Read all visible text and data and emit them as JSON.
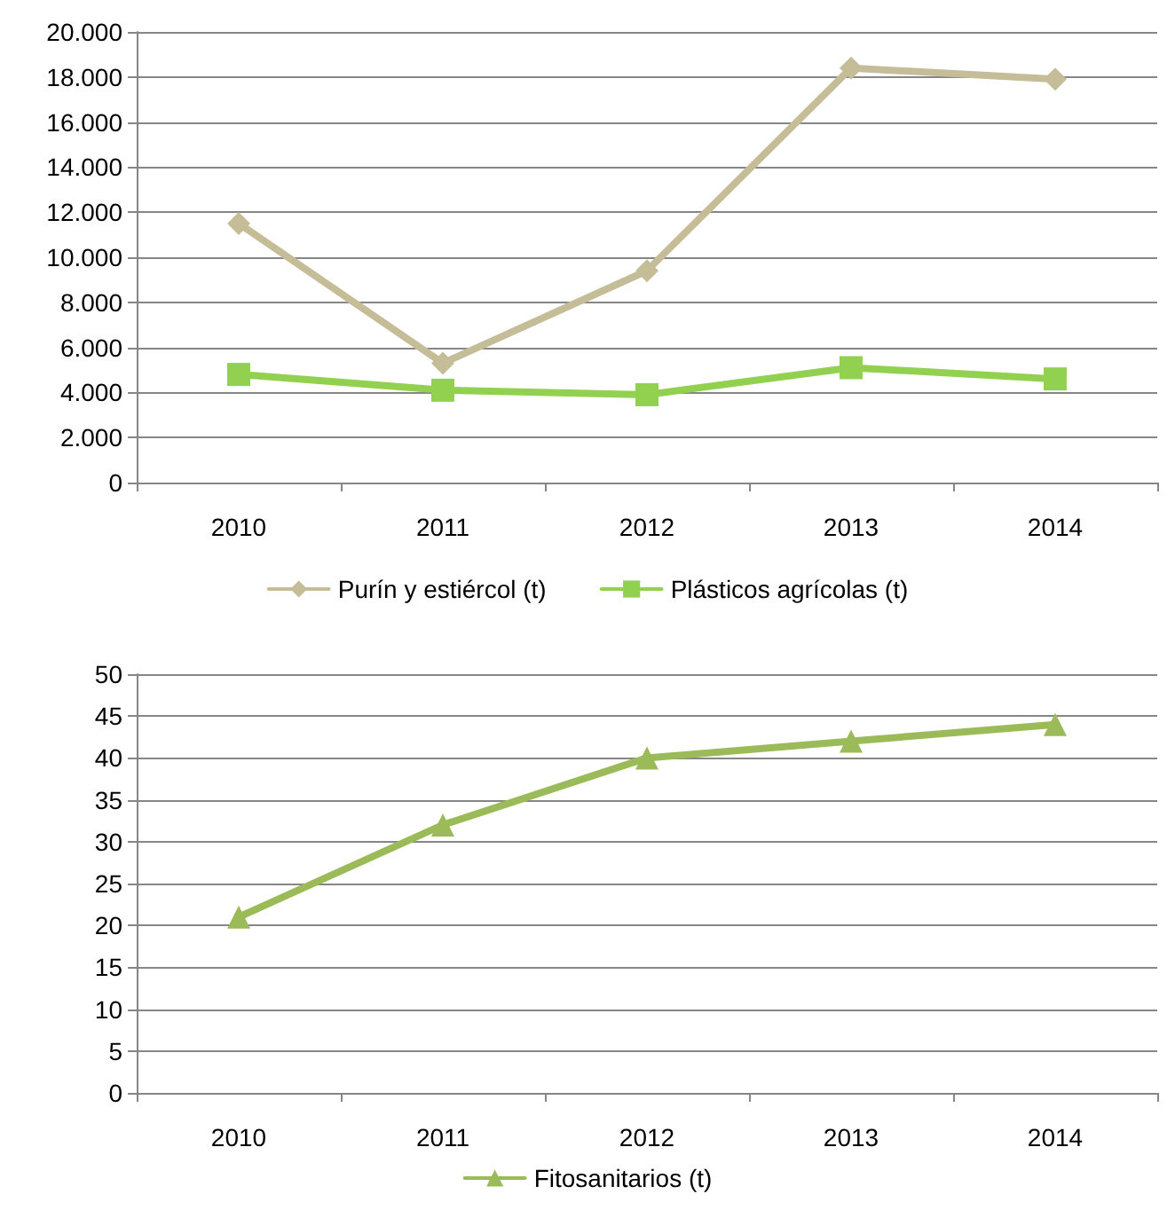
{
  "chart_data": [
    {
      "type": "line",
      "categories": [
        "2010",
        "2011",
        "2012",
        "2013",
        "2014"
      ],
      "series": [
        {
          "name": "Purín y estiércol (t)",
          "color": "#c4bd97",
          "marker": "diamond",
          "values": [
            11500,
            5300,
            9400,
            18400,
            17900
          ]
        },
        {
          "name": "Plásticos agrícolas (t)",
          "color": "#92d050",
          "marker": "square",
          "values": [
            4800,
            4100,
            3900,
            5100,
            4600
          ]
        }
      ],
      "ylim": [
        0,
        20000
      ],
      "yticks": [
        {
          "value": 0,
          "label": "0"
        },
        {
          "value": 2000,
          "label": "2.000"
        },
        {
          "value": 4000,
          "label": "4.000"
        },
        {
          "value": 6000,
          "label": "6.000"
        },
        {
          "value": 8000,
          "label": "8.000"
        },
        {
          "value": 10000,
          "label": "10.000"
        },
        {
          "value": 12000,
          "label": "12.000"
        },
        {
          "value": 14000,
          "label": "14.000"
        },
        {
          "value": 16000,
          "label": "16.000"
        },
        {
          "value": 18000,
          "label": "18.000"
        },
        {
          "value": 20000,
          "label": "20.000"
        }
      ],
      "grid": "y",
      "legend": "bottom",
      "line_style": "solid"
    },
    {
      "type": "line",
      "categories": [
        "2010",
        "2011",
        "2012",
        "2013",
        "2014"
      ],
      "series": [
        {
          "name": "Fitosanitarios (t)",
          "color": "#9bbb59",
          "marker": "triangle",
          "values": [
            21,
            32,
            40,
            42,
            44
          ]
        }
      ],
      "ylim": [
        0,
        50
      ],
      "yticks": [
        0,
        5,
        10,
        15,
        20,
        25,
        30,
        35,
        40,
        45,
        50
      ],
      "grid": "y",
      "legend": "bottom",
      "line_style": "solid"
    }
  ]
}
